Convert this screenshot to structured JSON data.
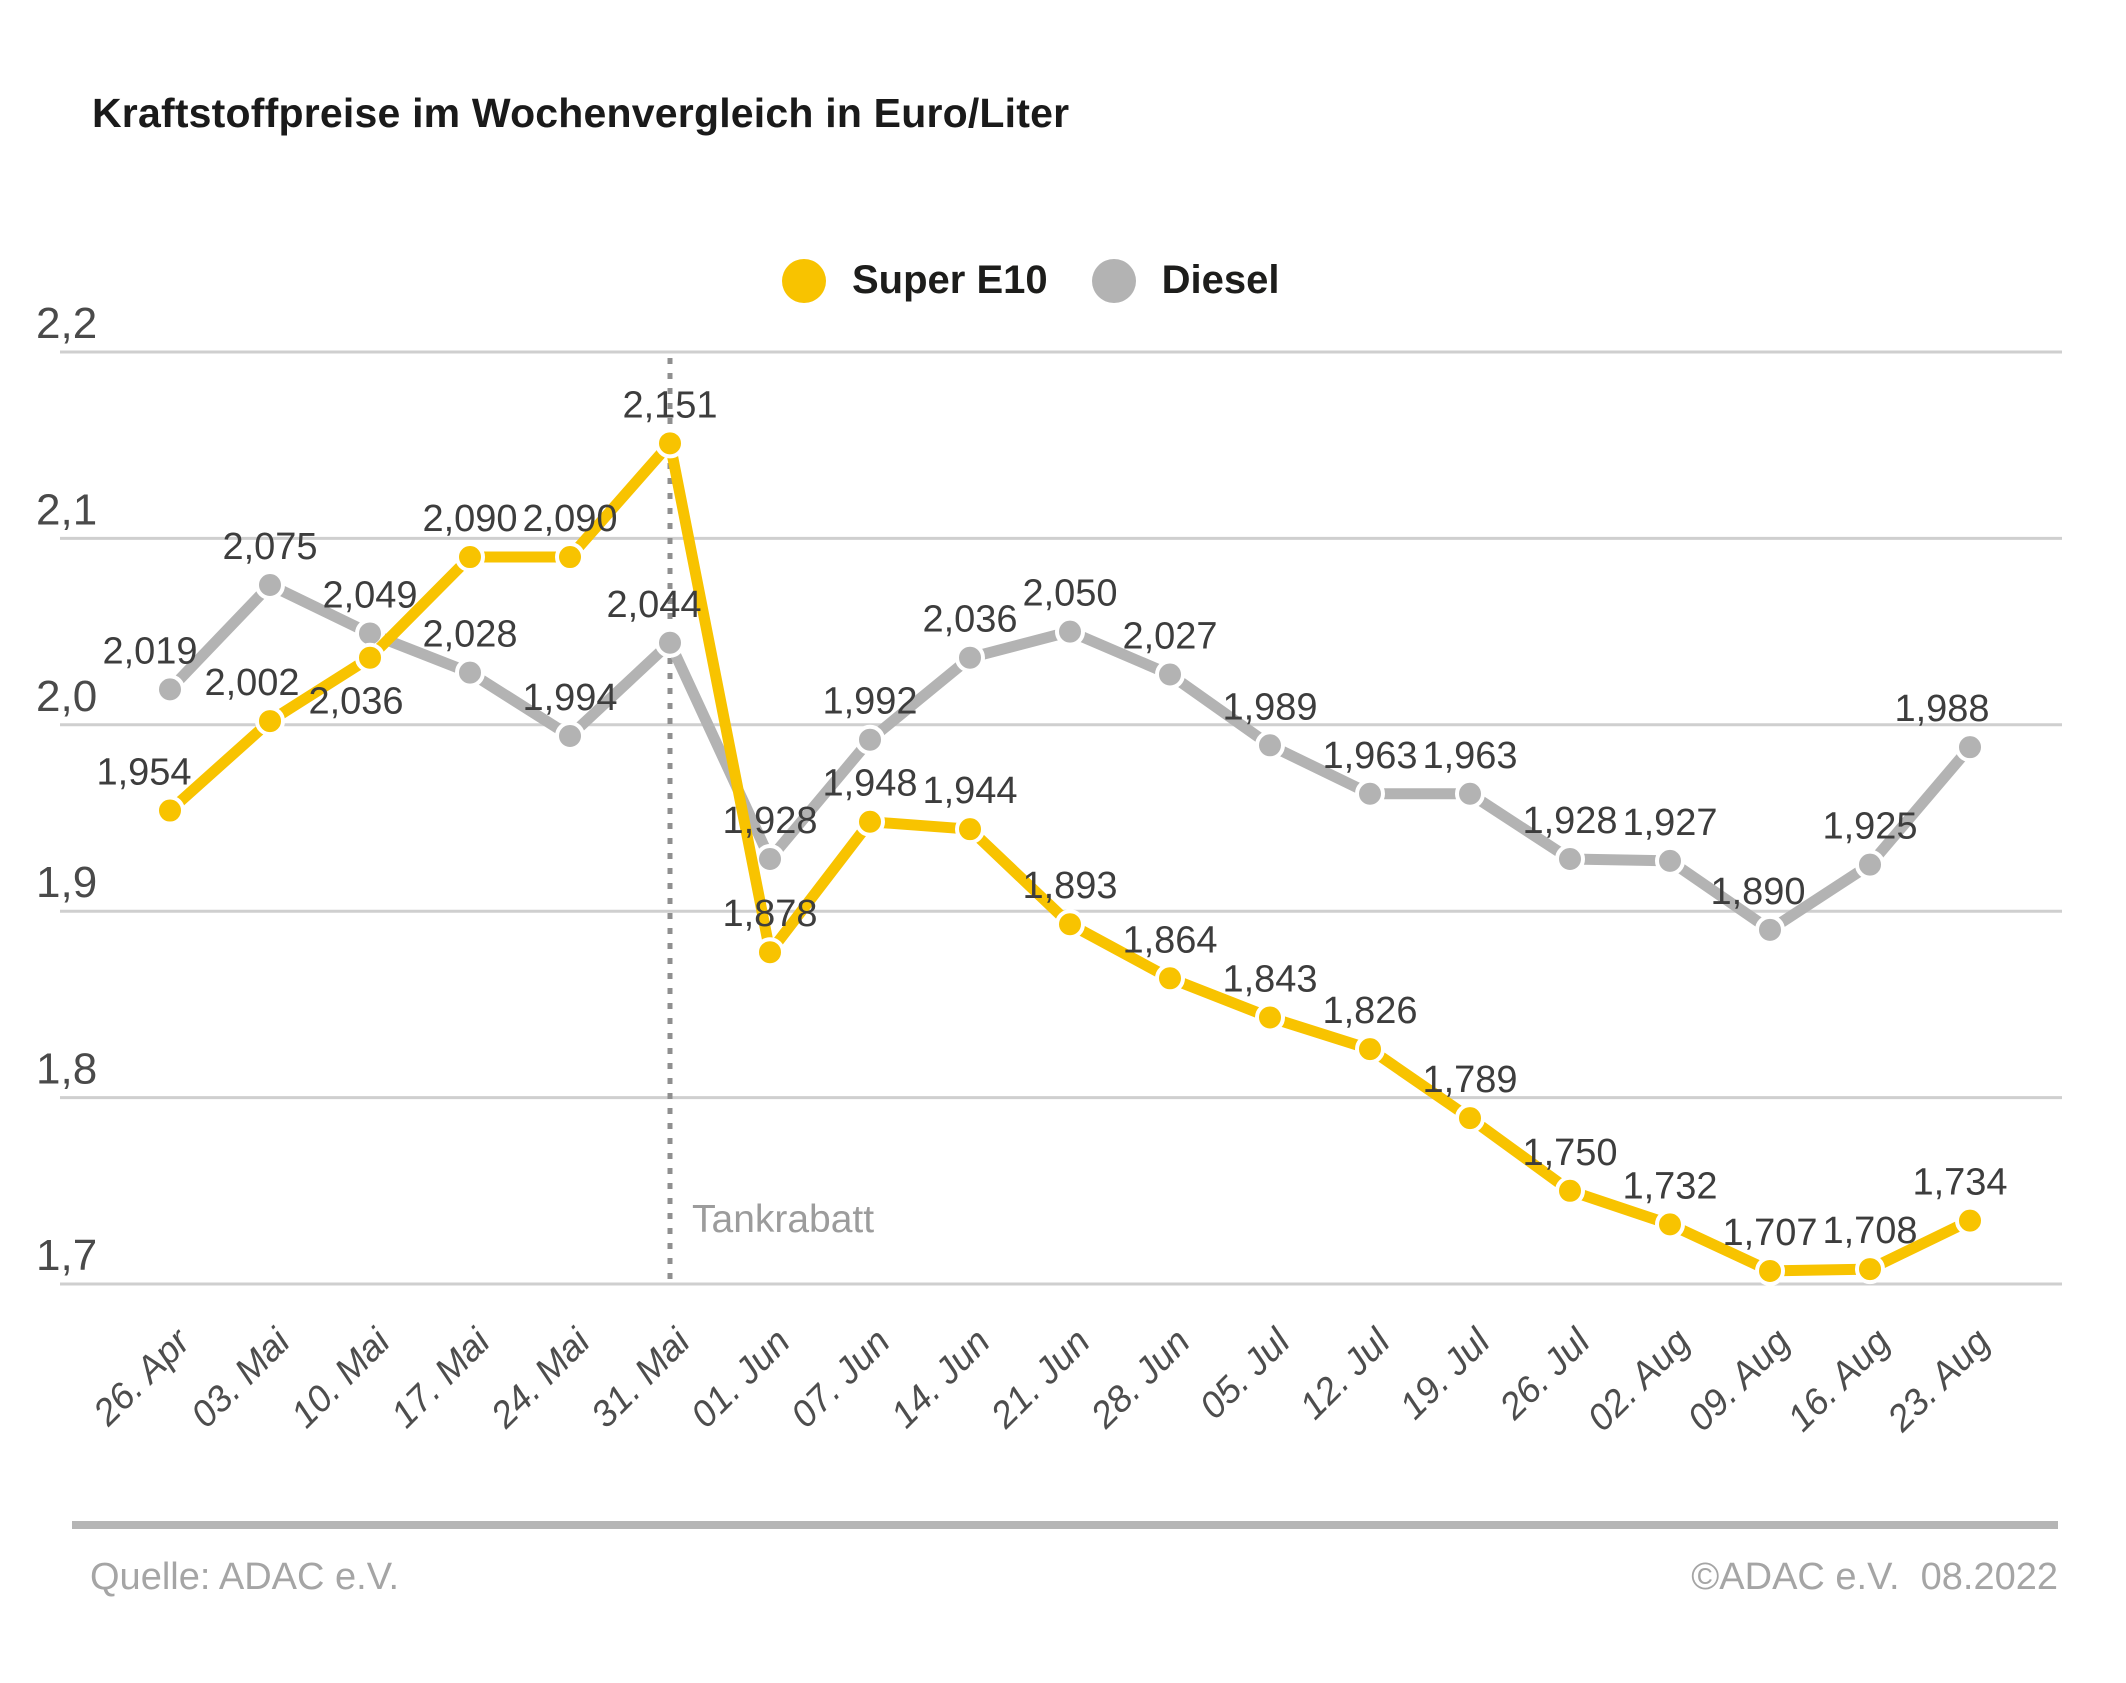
{
  "title": "Kraftstoffpreise im Wochenvergleich in Euro/Liter",
  "legend": [
    {
      "label": "Super E10",
      "color": "#F8C300"
    },
    {
      "label": "Diesel",
      "color": "#B3B3B3"
    }
  ],
  "annotation": {
    "label": "Tankrabatt"
  },
  "footer": {
    "source": "Quelle: ADAC e.V.",
    "copyright": "©ADAC e.V.  08.2022"
  },
  "chart_data": {
    "type": "line",
    "title": "Kraftstoffpreise im Wochenvergleich in Euro/Liter",
    "grid": true,
    "legend_position": "top-center",
    "ylim": [
      1.7,
      2.2
    ],
    "categories": [
      "26. Apr",
      "03. Mai",
      "10. Mai",
      "17. Mai",
      "24. Mai",
      "31. Mai",
      "01. Jun",
      "07. Jun",
      "14. Jun",
      "21. Jun",
      "28. Jun",
      "05. Jul",
      "12. Jul",
      "19. Jul",
      "26. Jul",
      "02. Aug",
      "09. Aug",
      "16. Aug",
      "23. Aug"
    ],
    "yticks": [
      {
        "label": "2,2",
        "value": 2.2
      },
      {
        "label": "2,1",
        "value": 2.1
      },
      {
        "label": "2,0",
        "value": 2.0
      },
      {
        "label": "1,9",
        "value": 1.9
      },
      {
        "label": "1,8",
        "value": 1.8
      },
      {
        "label": "1,7",
        "value": 1.7
      }
    ],
    "vline": {
      "index": 5,
      "label": "Tankrabatt"
    },
    "series": [
      {
        "name": "Super E10",
        "color": "#F8C300",
        "values": [
          1.954,
          2.002,
          2.036,
          2.09,
          2.09,
          2.151,
          1.878,
          1.948,
          1.944,
          1.893,
          1.864,
          1.843,
          1.826,
          1.789,
          1.75,
          1.732,
          1.707,
          1.708,
          1.734
        ],
        "labels": [
          "1,954",
          "2,002",
          "2,036",
          "2,090",
          "2,090",
          "2,151",
          "1,878",
          "1,948",
          "1,944",
          "1,893",
          "1,864",
          "1,843",
          "1,826",
          "1,789",
          "1,750",
          "1,732",
          "1,707",
          "1,708",
          "1,734"
        ],
        "label_offsets": {
          "0": {
            "dx": -26
          },
          "1": {
            "dx": -18
          },
          "2": {
            "dx": -14,
            "below": true
          },
          "18": {
            "dx": -10
          }
        }
      },
      {
        "name": "Diesel",
        "color": "#B3B3B3",
        "values": [
          2.019,
          2.075,
          2.049,
          2.028,
          1.994,
          2.044,
          1.928,
          1.992,
          2.036,
          2.05,
          2.027,
          1.989,
          1.963,
          1.963,
          1.928,
          1.927,
          1.89,
          1.925,
          1.988
        ],
        "labels": [
          "2,019",
          "2,075",
          "2,049",
          "2,028",
          "1,994",
          "2,044",
          "1,928",
          "1,992",
          "2,036",
          "2,050",
          "2,027",
          "1,989",
          "1,963",
          "1,963",
          "1,928",
          "1,927",
          "1,890",
          "1,925",
          "1,988"
        ],
        "label_offsets": {
          "0": {
            "dx": -20
          },
          "5": {
            "dx": -16
          },
          "16": {
            "dx": -12
          },
          "18": {
            "dx": -28
          }
        }
      }
    ],
    "styles": {
      "grid_color": "#CFCFCF",
      "data_label_color": "#3D3D3D",
      "axis_label_color": "#4A4A4A",
      "x_label_color": "#4D4D4D",
      "vline_color": "#8F8F8F",
      "annotation_color": "#9C9C9C"
    }
  }
}
